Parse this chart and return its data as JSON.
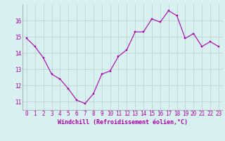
{
  "hours": [
    0,
    1,
    2,
    3,
    4,
    5,
    6,
    7,
    8,
    9,
    10,
    11,
    12,
    13,
    14,
    15,
    16,
    17,
    18,
    19,
    20,
    21,
    22,
    23
  ],
  "values": [
    14.9,
    14.4,
    13.7,
    12.7,
    12.4,
    11.8,
    11.1,
    10.9,
    11.5,
    12.7,
    12.9,
    13.8,
    14.2,
    15.3,
    15.3,
    16.1,
    15.9,
    16.6,
    16.3,
    14.9,
    15.2,
    14.4,
    14.7,
    14.4
  ],
  "line_color": "#aa00aa",
  "marker_color": "#aa00aa",
  "bg_color": "#d8f0f0",
  "grid_color": "#b8d0d0",
  "xlabel": "Windchill (Refroidissement éolien,°C)",
  "tick_color": "#aa00aa",
  "ylim": [
    10.5,
    17.0
  ],
  "yticks": [
    11,
    12,
    13,
    14,
    15,
    16
  ],
  "xticks": [
    0,
    1,
    2,
    3,
    4,
    5,
    6,
    7,
    8,
    9,
    10,
    11,
    12,
    13,
    14,
    15,
    16,
    17,
    18,
    19,
    20,
    21,
    22,
    23
  ],
  "tick_fontsize": 5.5,
  "label_fontsize": 6.0
}
